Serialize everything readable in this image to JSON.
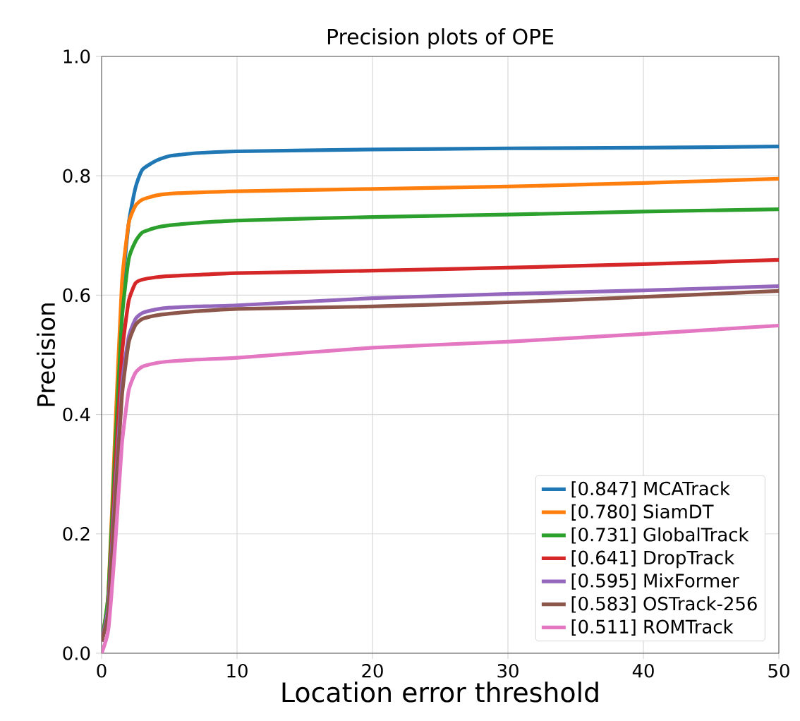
{
  "chart_data": {
    "type": "line",
    "title": "Precision plots of OPE",
    "xlabel": "Location error threshold",
    "ylabel": "Precision",
    "x": [
      0,
      0.5,
      1,
      1.5,
      2,
      2.5,
      3,
      4,
      5,
      7,
      10,
      20,
      30,
      40,
      50
    ],
    "xlim": [
      0,
      50
    ],
    "ylim": [
      0,
      1
    ],
    "xticks": [
      0,
      10,
      20,
      30,
      40,
      50
    ],
    "yticks": [
      {
        "value": 0,
        "label": "0.0"
      },
      {
        "value": 0.2,
        "label": "0.2"
      },
      {
        "value": 0.4,
        "label": "0.4"
      },
      {
        "value": 0.6,
        "label": "0.6"
      },
      {
        "value": 0.8,
        "label": "0.8"
      },
      {
        "value": 1,
        "label": "1.0"
      }
    ],
    "grid": true,
    "legend": "bottom right",
    "line_style": "solid",
    "marker": "none",
    "series": [
      {
        "name": "[0.847] MCATrack",
        "color": "#1f77b4",
        "values": [
          null,
          null,
          0.35,
          0.6,
          0.72,
          0.78,
          0.81,
          0.825,
          0.833,
          0.838,
          0.841,
          0.844,
          0.846,
          0.847,
          0.849
        ]
      },
      {
        "name": "[0.780] SiamDT",
        "color": "#ff7f0e",
        "values": [
          0.02,
          0.1,
          0.37,
          0.62,
          0.72,
          0.75,
          0.76,
          0.767,
          0.77,
          0.772,
          0.774,
          0.778,
          0.782,
          0.788,
          0.795
        ]
      },
      {
        "name": "[0.731] GlobalTrack",
        "color": "#2ca02c",
        "values": [
          0.02,
          0.1,
          0.34,
          0.56,
          0.66,
          0.69,
          0.705,
          0.713,
          0.717,
          0.721,
          0.725,
          0.731,
          0.735,
          0.74,
          0.744
        ]
      },
      {
        "name": "[0.641] DropTrack",
        "color": "#d62728",
        "values": [
          0.02,
          0.08,
          0.3,
          0.5,
          0.59,
          0.62,
          0.626,
          0.63,
          0.632,
          0.634,
          0.637,
          0.641,
          0.646,
          0.652,
          0.659
        ]
      },
      {
        "name": "[0.595] MixFormer",
        "color": "#9467bd",
        "values": [
          0.02,
          0.08,
          0.27,
          0.45,
          0.53,
          0.56,
          0.57,
          0.576,
          0.579,
          0.581,
          0.583,
          0.595,
          0.602,
          0.608,
          0.615
        ]
      },
      {
        "name": "[0.583] OSTrack-256",
        "color": "#8c564b",
        "values": [
          0.02,
          0.07,
          0.25,
          0.43,
          0.52,
          0.55,
          0.56,
          0.566,
          0.569,
          0.573,
          0.577,
          0.581,
          0.588,
          0.597,
          0.607
        ]
      },
      {
        "name": "[0.511] ROMTrack",
        "color": "#e377c2",
        "values": [
          0,
          0.04,
          0.18,
          0.35,
          0.44,
          0.47,
          0.48,
          0.486,
          0.489,
          0.492,
          0.495,
          0.512,
          0.522,
          0.535,
          0.549
        ]
      }
    ]
  }
}
